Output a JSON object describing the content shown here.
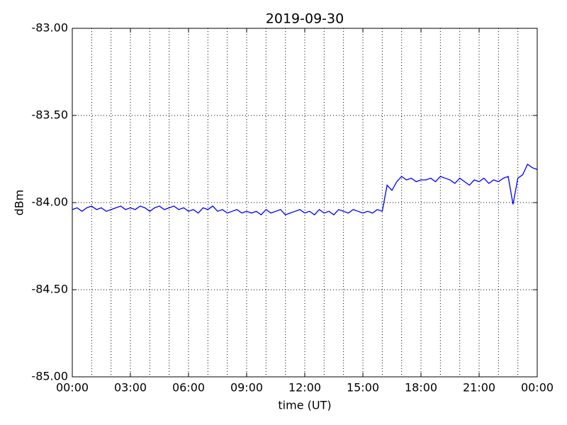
{
  "chart_data": {
    "type": "line",
    "title": "2019-09-30",
    "xlabel": "time (UT)",
    "ylabel": "dBm",
    "x": [
      0,
      0.25,
      0.5,
      0.75,
      1,
      1.25,
      1.5,
      1.75,
      2,
      2.25,
      2.5,
      2.75,
      3,
      3.25,
      3.5,
      3.75,
      4,
      4.25,
      4.5,
      4.75,
      5,
      5.25,
      5.5,
      5.75,
      6,
      6.25,
      6.5,
      6.75,
      7,
      7.25,
      7.5,
      7.75,
      8,
      8.25,
      8.5,
      8.75,
      9,
      9.25,
      9.5,
      9.75,
      10,
      10.25,
      10.5,
      10.75,
      11,
      11.25,
      11.5,
      11.75,
      12,
      12.25,
      12.5,
      12.75,
      13,
      13.25,
      13.5,
      13.75,
      14,
      14.25,
      14.5,
      14.75,
      15,
      15.25,
      15.5,
      15.75,
      16,
      16.25,
      16.5,
      16.75,
      17,
      17.25,
      17.5,
      17.75,
      18,
      18.25,
      18.5,
      18.75,
      19,
      19.25,
      19.5,
      19.75,
      20,
      20.25,
      20.5,
      20.75,
      21,
      21.25,
      21.5,
      21.75,
      22,
      22.25,
      22.5,
      22.75,
      23,
      23.25,
      23.5,
      23.75,
      24
    ],
    "series": [
      {
        "color": "#0000ff",
        "values": [
          -84.04,
          -84.03,
          -84.05,
          -84.03,
          -84.02,
          -84.04,
          -84.03,
          -84.05,
          -84.04,
          -84.03,
          -84.02,
          -84.04,
          -84.03,
          -84.04,
          -84.02,
          -84.03,
          -84.05,
          -84.03,
          -84.02,
          -84.04,
          -84.03,
          -84.02,
          -84.04,
          -84.03,
          -84.05,
          -84.04,
          -84.06,
          -84.03,
          -84.04,
          -84.02,
          -84.05,
          -84.04,
          -84.06,
          -84.05,
          -84.04,
          -84.06,
          -84.05,
          -84.06,
          -84.05,
          -84.07,
          -84.04,
          -84.06,
          -84.05,
          -84.04,
          -84.07,
          -84.06,
          -84.05,
          -84.04,
          -84.06,
          -84.05,
          -84.07,
          -84.04,
          -84.06,
          -84.05,
          -84.07,
          -84.04,
          -84.05,
          -84.06,
          -84.04,
          -84.05,
          -84.06,
          -84.05,
          -84.06,
          -84.04,
          -84.05,
          -83.9,
          -83.93,
          -83.88,
          -83.85,
          -83.87,
          -83.86,
          -83.88,
          -83.87,
          -83.87,
          -83.86,
          -83.88,
          -83.85,
          -83.86,
          -83.87,
          -83.89,
          -83.86,
          -83.88,
          -83.9,
          -83.87,
          -83.88,
          -83.86,
          -83.89,
          -83.87,
          -83.88,
          -83.86,
          -83.85,
          -84.01,
          -83.86,
          -83.84,
          -83.78,
          -83.8,
          -83.81
        ]
      }
    ],
    "xlim": [
      0,
      24
    ],
    "xticks": [
      {
        "value": 0,
        "label": "00:00"
      },
      {
        "value": 3,
        "label": "03:00"
      },
      {
        "value": 6,
        "label": "06:00"
      },
      {
        "value": 9,
        "label": "09:00"
      },
      {
        "value": 12,
        "label": "12:00"
      },
      {
        "value": 15,
        "label": "15:00"
      },
      {
        "value": 18,
        "label": "18:00"
      },
      {
        "value": 21,
        "label": "21:00"
      },
      {
        "value": 24,
        "label": "00:00"
      }
    ],
    "x_minor_grid": [
      1,
      2,
      4,
      5,
      7,
      8,
      10,
      11,
      13,
      14,
      16,
      17,
      19,
      20,
      22,
      23
    ],
    "ylim": [
      -85,
      -83
    ],
    "yticks": [
      {
        "value": -85,
        "label": "-85.00"
      },
      {
        "value": -84.5,
        "label": "-84.50"
      },
      {
        "value": -84,
        "label": "-84.00"
      },
      {
        "value": -83.5,
        "label": "-83.50"
      },
      {
        "value": -83,
        "label": "-83.00"
      }
    ],
    "grid": true
  }
}
